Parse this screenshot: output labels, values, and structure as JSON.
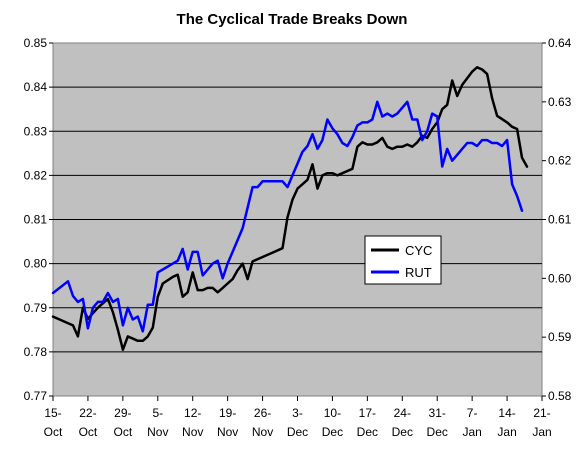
{
  "chart_data": {
    "type": "line",
    "title": "The Cyclical Trade Breaks Down",
    "x_labels": [
      {
        "top": "15-",
        "bottom": "Oct",
        "x": 0
      },
      {
        "top": "22-",
        "bottom": "Oct",
        "x": 7
      },
      {
        "top": "29-",
        "bottom": "Oct",
        "x": 14
      },
      {
        "top": "5-",
        "bottom": "Nov",
        "x": 21
      },
      {
        "top": "12-",
        "bottom": "Nov",
        "x": 28
      },
      {
        "top": "19-",
        "bottom": "Nov",
        "x": 35
      },
      {
        "top": "26-",
        "bottom": "Nov",
        "x": 42
      },
      {
        "top": "3-",
        "bottom": "Dec",
        "x": 49
      },
      {
        "top": "10-",
        "bottom": "Dec",
        "x": 56
      },
      {
        "top": "17-",
        "bottom": "Dec",
        "x": 63
      },
      {
        "top": "24-",
        "bottom": "Dec",
        "x": 70
      },
      {
        "top": "31-",
        "bottom": "Dec",
        "x": 77
      },
      {
        "top": "7-",
        "bottom": "Jan",
        "x": 84
      },
      {
        "top": "14-",
        "bottom": "Jan",
        "x": 91
      },
      {
        "top": "21-",
        "bottom": "Jan",
        "x": 98
      }
    ],
    "xlim": [
      0,
      98
    ],
    "y_left": {
      "min": 0.77,
      "max": 0.85,
      "ticks": [
        "0.77",
        "0.78",
        "0.79",
        "0.80",
        "0.81",
        "0.82",
        "0.83",
        "0.84",
        "0.85"
      ]
    },
    "y_right": {
      "min": 0.58,
      "max": 0.64,
      "ticks": [
        "0.58",
        "0.59",
        "0.60",
        "0.61",
        "0.62",
        "0.63",
        "0.64"
      ]
    },
    "grid": true,
    "legend_position": "center-right",
    "series": [
      {
        "name": "CYC",
        "color": "#000000",
        "axis": "left",
        "points": [
          [
            0,
            0.788
          ],
          [
            4,
            0.786
          ],
          [
            5,
            0.7835
          ],
          [
            6,
            0.79
          ],
          [
            7,
            0.7875
          ],
          [
            9,
            0.79
          ],
          [
            10,
            0.791
          ],
          [
            11,
            0.792
          ],
          [
            12,
            0.789
          ],
          [
            13,
            0.785
          ],
          [
            14,
            0.7805
          ],
          [
            15,
            0.7835
          ],
          [
            17,
            0.7825
          ],
          [
            18,
            0.7825
          ],
          [
            19,
            0.7835
          ],
          [
            20,
            0.7855
          ],
          [
            21,
            0.7925
          ],
          [
            22,
            0.7955
          ],
          [
            24,
            0.797
          ],
          [
            25,
            0.7975
          ],
          [
            26,
            0.7925
          ],
          [
            27,
            0.7935
          ],
          [
            28,
            0.798
          ],
          [
            29,
            0.794
          ],
          [
            30,
            0.794
          ],
          [
            31,
            0.7945
          ],
          [
            32,
            0.7945
          ],
          [
            33,
            0.7935
          ],
          [
            34,
            0.7945
          ],
          [
            35,
            0.7955
          ],
          [
            36,
            0.7965
          ],
          [
            37,
            0.7985
          ],
          [
            38,
            0.8
          ],
          [
            39,
            0.7965
          ],
          [
            40,
            0.8005
          ],
          [
            42,
            0.8015
          ],
          [
            44,
            0.8025
          ],
          [
            46,
            0.8035
          ],
          [
            47,
            0.8105
          ],
          [
            48,
            0.8145
          ],
          [
            49,
            0.817
          ],
          [
            50,
            0.818
          ],
          [
            51,
            0.819
          ],
          [
            52,
            0.8225
          ],
          [
            53,
            0.817
          ],
          [
            54,
            0.82
          ],
          [
            55,
            0.8205
          ],
          [
            56,
            0.8205
          ],
          [
            57,
            0.82
          ],
          [
            58,
            0.8205
          ],
          [
            59,
            0.821
          ],
          [
            60,
            0.8215
          ],
          [
            61,
            0.8265
          ],
          [
            62,
            0.8275
          ],
          [
            63,
            0.827
          ],
          [
            64,
            0.827
          ],
          [
            65,
            0.8275
          ],
          [
            66,
            0.8285
          ],
          [
            67,
            0.8265
          ],
          [
            68,
            0.826
          ],
          [
            69,
            0.8265
          ],
          [
            70,
            0.8265
          ],
          [
            71,
            0.827
          ],
          [
            72,
            0.8265
          ],
          [
            73,
            0.8275
          ],
          [
            74,
            0.829
          ],
          [
            75,
            0.8285
          ],
          [
            76,
            0.8305
          ],
          [
            77,
            0.832
          ],
          [
            78,
            0.835
          ],
          [
            79,
            0.836
          ],
          [
            80,
            0.8415
          ],
          [
            81,
            0.838
          ],
          [
            82,
            0.8405
          ],
          [
            84,
            0.8435
          ],
          [
            85,
            0.8445
          ],
          [
            86,
            0.844
          ],
          [
            87,
            0.843
          ],
          [
            88,
            0.8375
          ],
          [
            89,
            0.8335
          ],
          [
            91,
            0.832
          ],
          [
            92,
            0.831
          ],
          [
            93,
            0.8305
          ],
          [
            94,
            0.824
          ],
          [
            95,
            0.822
          ]
        ]
      },
      {
        "name": "RUT",
        "color": "#0000FF",
        "axis": "right",
        "points": [
          [
            0,
            0.5975
          ],
          [
            3,
            0.5995
          ],
          [
            4,
            0.597
          ],
          [
            5,
            0.596
          ],
          [
            6,
            0.5965
          ],
          [
            7,
            0.5915
          ],
          [
            8,
            0.595
          ],
          [
            9,
            0.596
          ],
          [
            10,
            0.596
          ],
          [
            11,
            0.5975
          ],
          [
            12,
            0.596
          ],
          [
            13,
            0.5965
          ],
          [
            14,
            0.592
          ],
          [
            15,
            0.595
          ],
          [
            16,
            0.593
          ],
          [
            17,
            0.5935
          ],
          [
            18,
            0.591
          ],
          [
            19,
            0.5955
          ],
          [
            20,
            0.5955
          ],
          [
            21,
            0.601
          ],
          [
            22,
            0.6015
          ],
          [
            23,
            0.602
          ],
          [
            24,
            0.6025
          ],
          [
            25,
            0.603
          ],
          [
            26,
            0.605
          ],
          [
            27,
            0.6015
          ],
          [
            28,
            0.6045
          ],
          [
            29,
            0.6045
          ],
          [
            30,
            0.6005
          ],
          [
            31,
            0.6015
          ],
          [
            32,
            0.6025
          ],
          [
            33,
            0.603
          ],
          [
            34,
            0.6
          ],
          [
            35,
            0.6025
          ],
          [
            36,
            0.6045
          ],
          [
            37,
            0.6065
          ],
          [
            38,
            0.6085
          ],
          [
            39,
            0.612
          ],
          [
            40,
            0.6155
          ],
          [
            41,
            0.6155
          ],
          [
            42,
            0.6165
          ],
          [
            43,
            0.6165
          ],
          [
            44,
            0.6165
          ],
          [
            45,
            0.6165
          ],
          [
            46,
            0.6165
          ],
          [
            47,
            0.6155
          ],
          [
            48,
            0.6175
          ],
          [
            49,
            0.6195
          ],
          [
            50,
            0.6215
          ],
          [
            51,
            0.6225
          ],
          [
            52,
            0.6245
          ],
          [
            53,
            0.622
          ],
          [
            54,
            0.6235
          ],
          [
            55,
            0.627
          ],
          [
            56,
            0.6255
          ],
          [
            57,
            0.6245
          ],
          [
            58,
            0.623
          ],
          [
            59,
            0.6225
          ],
          [
            60,
            0.624
          ],
          [
            61,
            0.626
          ],
          [
            62,
            0.6265
          ],
          [
            63,
            0.6265
          ],
          [
            64,
            0.627
          ],
          [
            65,
            0.63
          ],
          [
            66,
            0.6275
          ],
          [
            67,
            0.628
          ],
          [
            68,
            0.6275
          ],
          [
            69,
            0.628
          ],
          [
            70,
            0.629
          ],
          [
            71,
            0.63
          ],
          [
            72,
            0.627
          ],
          [
            73,
            0.627
          ],
          [
            74,
            0.6235
          ],
          [
            75,
            0.625
          ],
          [
            76,
            0.628
          ],
          [
            77,
            0.6275
          ],
          [
            78,
            0.619
          ],
          [
            79,
            0.622
          ],
          [
            80,
            0.62
          ],
          [
            81,
            0.621
          ],
          [
            83,
            0.623
          ],
          [
            84,
            0.623
          ],
          [
            85,
            0.6225
          ],
          [
            86,
            0.6235
          ],
          [
            87,
            0.6235
          ],
          [
            88,
            0.623
          ],
          [
            89,
            0.623
          ],
          [
            90,
            0.6225
          ],
          [
            91,
            0.6235
          ],
          [
            92,
            0.616
          ],
          [
            93,
            0.614
          ],
          [
            94,
            0.6115
          ]
        ]
      }
    ]
  }
}
